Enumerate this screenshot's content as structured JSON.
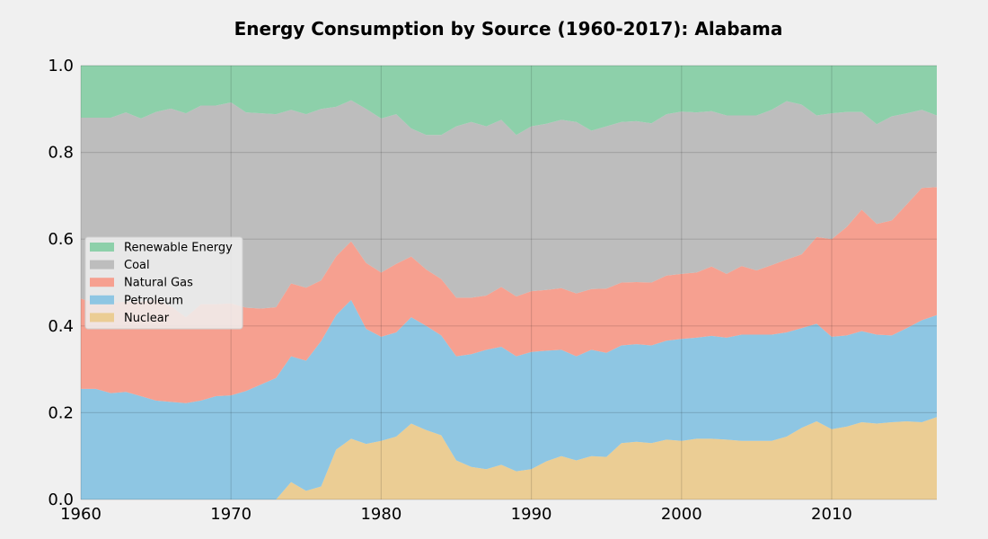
{
  "chart_data": {
    "type": "area",
    "stacked": true,
    "normalized": true,
    "title": "Energy Consumption by Source (1960-2017): Alabama",
    "xlabel": "",
    "ylabel": "",
    "xlim": [
      1960,
      2017
    ],
    "ylim": [
      0,
      1.0
    ],
    "grid": true,
    "legend_position": "center-left",
    "x_ticks": [
      1960,
      1970,
      1980,
      1990,
      2000,
      2010
    ],
    "x_tick_labels": [
      "1960",
      "1970",
      "1980",
      "1990",
      "2000",
      "2010"
    ],
    "y_ticks": [
      0,
      0.2,
      0.4,
      0.6,
      0.8,
      1.0
    ],
    "y_tick_labels": [
      "0.0",
      "0.2",
      "0.4",
      "0.6",
      "0.8",
      "1.0"
    ],
    "x": [
      1960,
      1961,
      1962,
      1963,
      1964,
      1965,
      1966,
      1967,
      1968,
      1969,
      1970,
      1971,
      1972,
      1973,
      1974,
      1975,
      1976,
      1977,
      1978,
      1979,
      1980,
      1981,
      1982,
      1983,
      1984,
      1985,
      1986,
      1987,
      1988,
      1989,
      1990,
      1991,
      1992,
      1993,
      1994,
      1995,
      1996,
      1997,
      1998,
      1999,
      2000,
      2001,
      2002,
      2003,
      2004,
      2005,
      2006,
      2007,
      2008,
      2009,
      2010,
      2011,
      2012,
      2013,
      2014,
      2015,
      2016,
      2017
    ],
    "series": [
      {
        "name": "Nuclear",
        "color": "#ebcd94",
        "values": [
          0,
          0,
          0,
          0,
          0,
          0,
          0,
          0,
          0,
          0,
          0,
          0,
          0,
          0,
          0.04,
          0.02,
          0.03,
          0.115,
          0.14,
          0.128,
          0.135,
          0.145,
          0.175,
          0.16,
          0.148,
          0.09,
          0.075,
          0.07,
          0.08,
          0.065,
          0.07,
          0.088,
          0.1,
          0.09,
          0.1,
          0.098,
          0.13,
          0.133,
          0.13,
          0.138,
          0.135,
          0.14,
          0.14,
          0.138,
          0.135,
          0.135,
          0.135,
          0.145,
          0.165,
          0.18,
          0.162,
          0.168,
          0.178,
          0.175,
          0.178,
          0.18,
          0.178,
          0.19
        ]
      },
      {
        "name": "Petroleum",
        "color": "#8ec6e3",
        "values": [
          0.255,
          0.255,
          0.245,
          0.248,
          0.238,
          0.228,
          0.225,
          0.222,
          0.228,
          0.238,
          0.24,
          0.25,
          0.265,
          0.28,
          0.29,
          0.3,
          0.335,
          0.31,
          0.32,
          0.265,
          0.24,
          0.24,
          0.245,
          0.24,
          0.23,
          0.24,
          0.26,
          0.275,
          0.272,
          0.265,
          0.27,
          0.255,
          0.245,
          0.24,
          0.245,
          0.24,
          0.225,
          0.225,
          0.225,
          0.228,
          0.235,
          0.233,
          0.237,
          0.235,
          0.245,
          0.245,
          0.245,
          0.24,
          0.23,
          0.225,
          0.213,
          0.21,
          0.21,
          0.205,
          0.2,
          0.215,
          0.235,
          0.235
        ]
      },
      {
        "name": "Natural Gas",
        "color": "#f6a090",
        "values": [
          0.208,
          0.198,
          0.208,
          0.208,
          0.218,
          0.233,
          0.22,
          0.198,
          0.222,
          0.212,
          0.212,
          0.192,
          0.175,
          0.163,
          0.168,
          0.168,
          0.14,
          0.135,
          0.135,
          0.152,
          0.148,
          0.158,
          0.14,
          0.13,
          0.13,
          0.135,
          0.13,
          0.125,
          0.138,
          0.138,
          0.14,
          0.14,
          0.142,
          0.145,
          0.14,
          0.148,
          0.145,
          0.143,
          0.145,
          0.15,
          0.15,
          0.15,
          0.16,
          0.147,
          0.158,
          0.148,
          0.16,
          0.168,
          0.17,
          0.2,
          0.225,
          0.25,
          0.28,
          0.255,
          0.265,
          0.285,
          0.305,
          0.295
        ]
      },
      {
        "name": "Coal",
        "color": "#bdbdbd",
        "values": [
          0.417,
          0.427,
          0.427,
          0.436,
          0.422,
          0.432,
          0.456,
          0.47,
          0.458,
          0.458,
          0.463,
          0.45,
          0.45,
          0.445,
          0.4,
          0.4,
          0.395,
          0.345,
          0.325,
          0.355,
          0.355,
          0.345,
          0.295,
          0.31,
          0.332,
          0.395,
          0.405,
          0.39,
          0.385,
          0.372,
          0.38,
          0.383,
          0.388,
          0.395,
          0.365,
          0.374,
          0.37,
          0.371,
          0.367,
          0.372,
          0.374,
          0.369,
          0.358,
          0.365,
          0.347,
          0.357,
          0.358,
          0.365,
          0.345,
          0.28,
          0.29,
          0.265,
          0.225,
          0.23,
          0.24,
          0.21,
          0.18,
          0.165
        ]
      },
      {
        "name": "Renewable Energy",
        "color": "#8dd0aa",
        "values": [
          0.12,
          0.12,
          0.12,
          0.108,
          0.122,
          0.107,
          0.099,
          0.11,
          0.092,
          0.092,
          0.085,
          0.108,
          0.11,
          0.112,
          0.102,
          0.112,
          0.1,
          0.095,
          0.08,
          0.1,
          0.122,
          0.112,
          0.145,
          0.16,
          0.16,
          0.14,
          0.13,
          0.14,
          0.125,
          0.16,
          0.14,
          0.134,
          0.125,
          0.13,
          0.15,
          0.14,
          0.13,
          0.128,
          0.133,
          0.112,
          0.106,
          0.108,
          0.105,
          0.115,
          0.115,
          0.115,
          0.102,
          0.082,
          0.09,
          0.115,
          0.11,
          0.107,
          0.107,
          0.135,
          0.117,
          0.11,
          0.102,
          0.115
        ]
      }
    ],
    "legend_order": [
      "Renewable Energy",
      "Coal",
      "Natural Gas",
      "Petroleum",
      "Nuclear"
    ]
  }
}
